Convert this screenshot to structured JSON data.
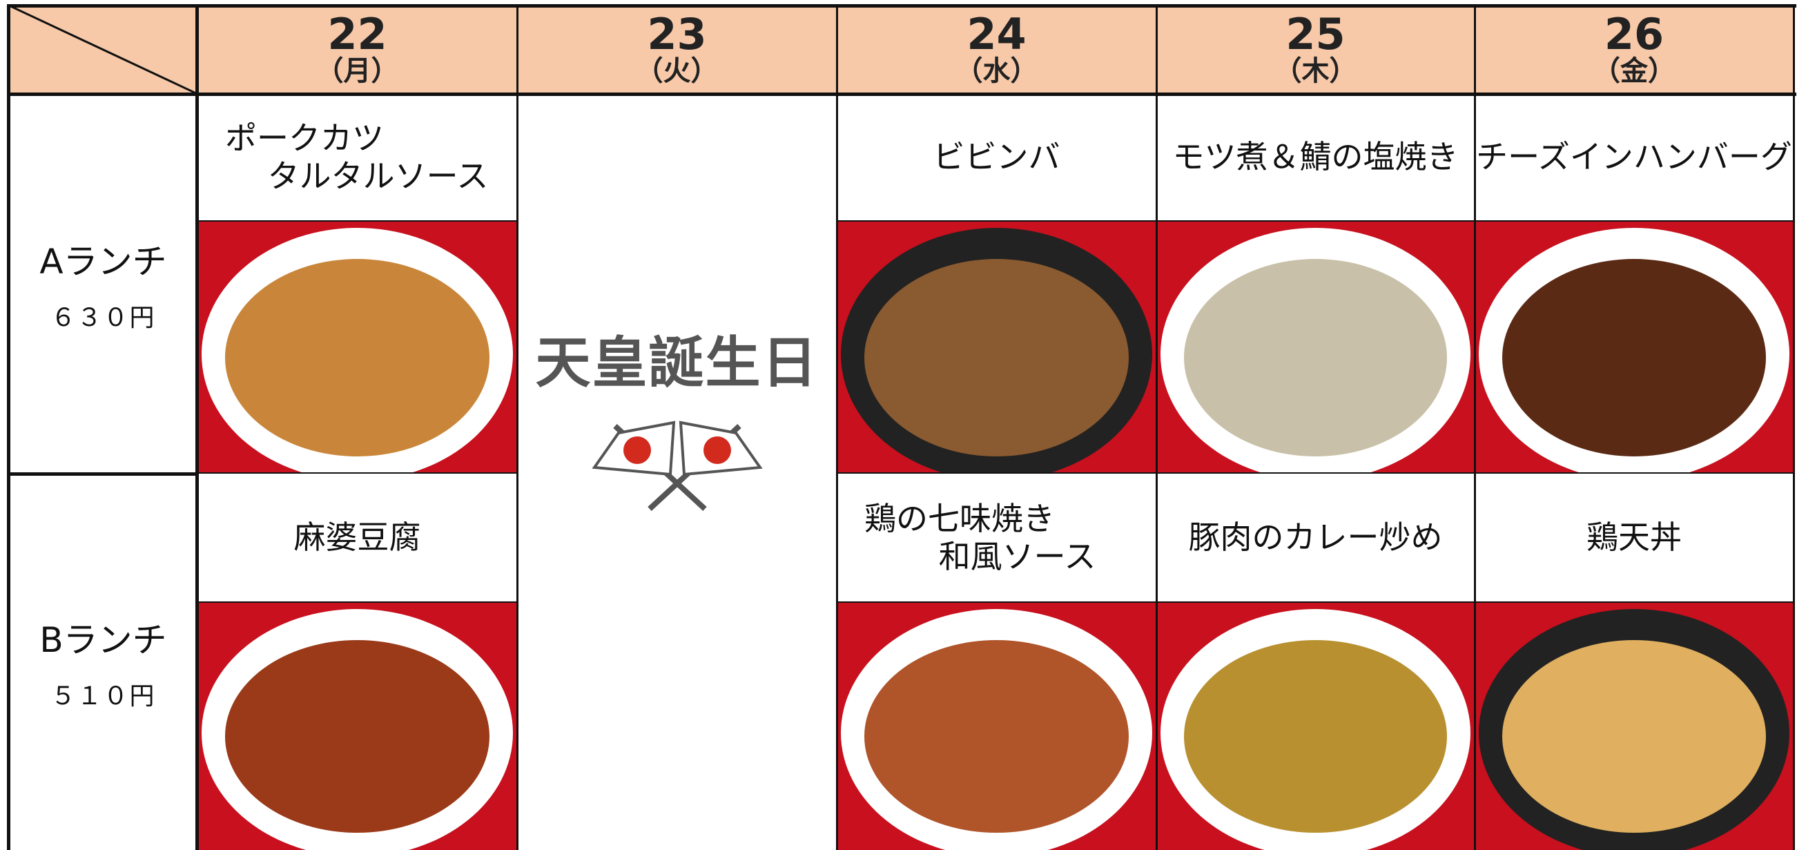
{
  "header": {
    "days": [
      {
        "number": "22",
        "weekday": "（月）"
      },
      {
        "number": "23",
        "weekday": "（火）"
      },
      {
        "number": "24",
        "weekday": "（水）"
      },
      {
        "number": "25",
        "weekday": "（木）"
      },
      {
        "number": "26",
        "weekday": "（金）"
      }
    ]
  },
  "holiday": "天皇誕生日",
  "rows": [
    {
      "label": "Aランチ",
      "price": "６３０円",
      "dishes": [
        [
          "ポークカツ",
          "タルタルソース"
        ],
        [
          "ビビンバ"
        ],
        [
          "モツ煮＆鯖の塩焼き"
        ],
        [
          "チーズインハンバーグ"
        ]
      ]
    },
    {
      "label": "Bランチ",
      "price": "５１０円",
      "dishes": [
        [
          "麻婆豆腐"
        ],
        [
          "鶏の七味焼き",
          "和風ソース"
        ],
        [
          "豚肉のカレー炒め"
        ],
        [
          "鶏天丼"
        ]
      ]
    }
  ]
}
